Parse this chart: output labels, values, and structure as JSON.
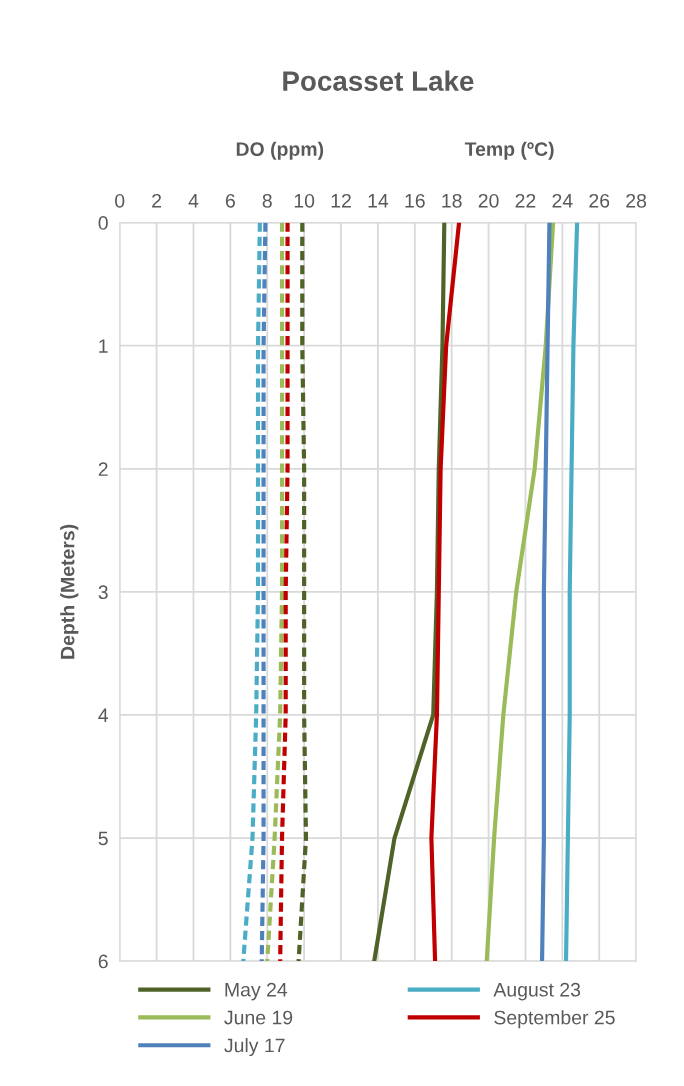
{
  "chart_data": {
    "type": "line",
    "title": "Pocasset Lake",
    "ylabel": "Depth (Meters)",
    "annotations": [
      "DO (ppm)",
      "Temp (ºC)"
    ],
    "xlim": [
      0,
      28
    ],
    "xticks": [
      0,
      2,
      4,
      6,
      8,
      10,
      12,
      14,
      16,
      18,
      20,
      22,
      24,
      26,
      28
    ],
    "ylim": [
      6,
      0
    ],
    "yticks": [
      0,
      1,
      2,
      3,
      4,
      5,
      6
    ],
    "grid": true,
    "legend": "bottom",
    "marker": "none",
    "series": [
      {
        "name": "May 24",
        "color": "#4f6228",
        "line_style": "solid",
        "x": [
          17.6,
          17.5,
          17.3,
          17.2,
          17.0,
          14.9,
          13.8
        ],
        "values": [
          0,
          1,
          2,
          3,
          4,
          5,
          6
        ]
      },
      {
        "name": "June 19",
        "color": "#9bbb59",
        "line_style": "solid",
        "x": [
          23.5,
          23.1,
          22.5,
          21.5,
          20.8,
          20.3,
          19.9
        ],
        "values": [
          0,
          1,
          2,
          3,
          4,
          5,
          6
        ]
      },
      {
        "name": "July 17",
        "color": "#4f81bd",
        "line_style": "solid",
        "x": [
          23.3,
          23.2,
          23.1,
          23.0,
          23.0,
          23.0,
          22.9
        ],
        "values": [
          0,
          1,
          2,
          3,
          4,
          5,
          6
        ]
      },
      {
        "name": "August 23",
        "color": "#4bacc6",
        "line_style": "solid",
        "x": [
          24.8,
          24.6,
          24.5,
          24.4,
          24.4,
          24.3,
          24.2
        ],
        "values": [
          0,
          1,
          2,
          3,
          4,
          5,
          6
        ]
      },
      {
        "name": "September 25",
        "color": "#c00000",
        "line_style": "solid",
        "x": [
          18.4,
          17.7,
          17.4,
          17.3,
          17.2,
          16.9,
          17.1
        ],
        "values": [
          0,
          1,
          2,
          3,
          4,
          5,
          6
        ]
      },
      {
        "color": "#4f6228",
        "line_style": "dashed",
        "x": [
          9.9,
          9.9,
          10.0,
          10.0,
          10.0,
          10.1,
          9.7
        ],
        "values": [
          0,
          1,
          2,
          3,
          4,
          5,
          6
        ]
      },
      {
        "color": "#9bbb59",
        "line_style": "dashed",
        "x": [
          8.8,
          8.8,
          8.8,
          8.8,
          8.7,
          8.4,
          8.0
        ],
        "values": [
          0,
          1,
          2,
          3,
          4,
          5,
          6
        ]
      },
      {
        "color": "#4f81bd",
        "line_style": "dashed",
        "x": [
          7.9,
          7.8,
          7.8,
          7.8,
          7.8,
          7.8,
          7.7
        ],
        "values": [
          0,
          1,
          2,
          3,
          4,
          5,
          6
        ]
      },
      {
        "color": "#4bacc6",
        "line_style": "dashed",
        "x": [
          7.6,
          7.5,
          7.5,
          7.5,
          7.4,
          7.2,
          6.7
        ],
        "values": [
          0,
          1,
          2,
          3,
          4,
          5,
          6
        ]
      },
      {
        "color": "#c00000",
        "line_style": "dashed",
        "x": [
          9.1,
          9.1,
          9.1,
          9.0,
          9.0,
          8.8,
          8.7
        ],
        "values": [
          0,
          1,
          2,
          3,
          4,
          5,
          6
        ]
      }
    ]
  }
}
